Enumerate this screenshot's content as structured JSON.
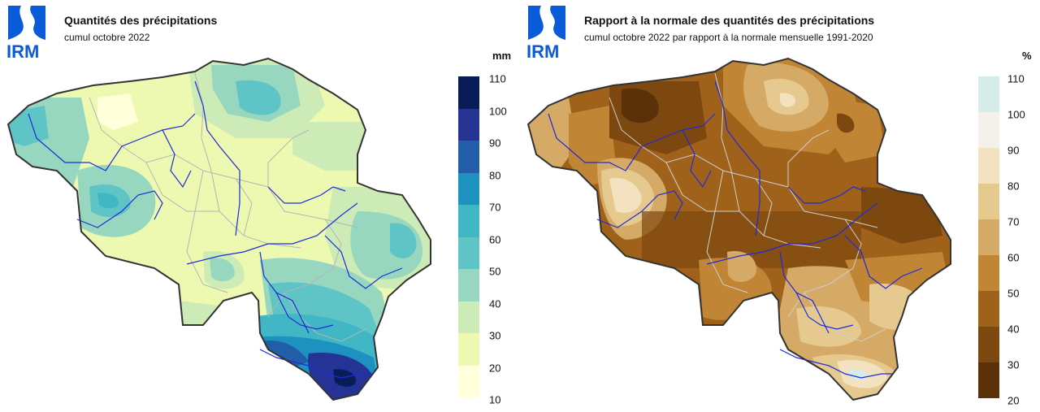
{
  "logo_text": "IRM",
  "left_panel": {
    "title": "Quantités des précipitations",
    "subtitle": "cumul octobre 2022",
    "unit": "mm",
    "legend_ticks": [
      "110",
      "100",
      "90",
      "80",
      "70",
      "60",
      "50",
      "40",
      "30",
      "20",
      "10"
    ],
    "legend_colors": [
      "#081d58",
      "#253494",
      "#225ea8",
      "#1d91c0",
      "#41b6c4",
      "#5ec4c5",
      "#97d7bf",
      "#cdebb6",
      "#edf8b1",
      "#ffffd9"
    ]
  },
  "right_panel": {
    "title": "Rapport à la normale des quantités des précipitations",
    "subtitle": "cumul octobre 2022 par rapport à la normale mensuelle 1991-2020",
    "unit": "%",
    "legend_ticks": [
      "110",
      "100",
      "90",
      "80",
      "70",
      "60",
      "50",
      "40",
      "30",
      "20"
    ],
    "legend_colors": [
      "#d6ece9",
      "#f3f1ea",
      "#f2e2c0",
      "#e5c98f",
      "#d4aa66",
      "#c08535",
      "#a0621a",
      "#7d4710",
      "#5a3109"
    ]
  },
  "colors": {
    "logo_blue": "#0a5bd8",
    "river": "#1f2bd8",
    "boundary": "#b5b5b5",
    "outline": "#333333"
  }
}
